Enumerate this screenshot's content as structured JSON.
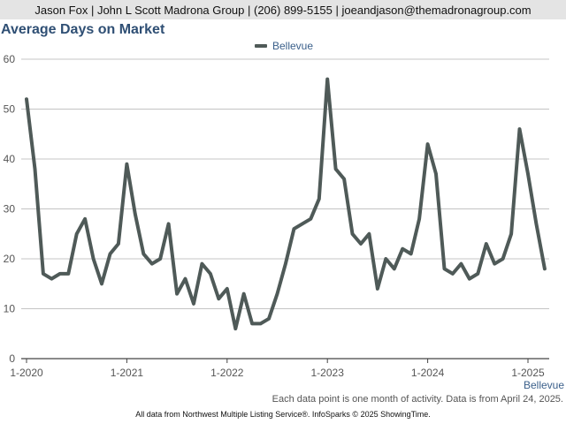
{
  "header": {
    "contact": "Jason Fox | John L Scott Madrona Group | (206) 899-5155 | joeandjason@themadronagroup.com"
  },
  "footer": {
    "note": "Each data point is one month of activity. Data is from April 24, 2025.",
    "source": "All data from Northwest Multiple Listing Service®. InfoSparks © 2025 ShowingTime."
  },
  "chart_data": {
    "type": "line",
    "title": "Average Days on Market",
    "xlabel": "Bellevue",
    "ylabel": "",
    "ylim": [
      0,
      60
    ],
    "yticks": [
      0,
      10,
      20,
      30,
      40,
      50,
      60
    ],
    "grid": true,
    "legend_position": "top-center",
    "x_tick_labels": [
      "1-2020",
      "1-2021",
      "1-2022",
      "1-2023",
      "1-2024",
      "1-2025"
    ],
    "x": [
      "1-2020",
      "2-2020",
      "3-2020",
      "4-2020",
      "5-2020",
      "6-2020",
      "7-2020",
      "8-2020",
      "9-2020",
      "10-2020",
      "11-2020",
      "12-2020",
      "1-2021",
      "2-2021",
      "3-2021",
      "4-2021",
      "5-2021",
      "6-2021",
      "7-2021",
      "8-2021",
      "9-2021",
      "10-2021",
      "11-2021",
      "12-2021",
      "1-2022",
      "2-2022",
      "3-2022",
      "4-2022",
      "5-2022",
      "6-2022",
      "7-2022",
      "8-2022",
      "9-2022",
      "10-2022",
      "11-2022",
      "12-2022",
      "1-2023",
      "2-2023",
      "3-2023",
      "4-2023",
      "5-2023",
      "6-2023",
      "7-2023",
      "8-2023",
      "9-2023",
      "10-2023",
      "11-2023",
      "12-2023",
      "1-2024",
      "2-2024",
      "3-2024",
      "4-2024",
      "5-2024",
      "6-2024",
      "7-2024",
      "8-2024",
      "9-2024",
      "10-2024",
      "11-2024",
      "12-2024",
      "1-2025",
      "2-2025",
      "3-2025"
    ],
    "series": [
      {
        "name": "Bellevue",
        "color": "#4f5a58",
        "values": [
          52,
          38,
          17,
          16,
          17,
          17,
          25,
          28,
          20,
          15,
          21,
          23,
          39,
          29,
          21,
          19,
          20,
          27,
          13,
          16,
          11,
          19,
          17,
          12,
          14,
          6,
          13,
          7,
          7,
          8,
          13,
          19,
          26,
          27,
          28,
          32,
          56,
          38,
          36,
          25,
          23,
          25,
          14,
          20,
          18,
          22,
          21,
          28,
          43,
          37,
          18,
          17,
          19,
          16,
          17,
          23,
          19,
          20,
          25,
          46,
          37,
          27,
          18
        ]
      }
    ]
  }
}
